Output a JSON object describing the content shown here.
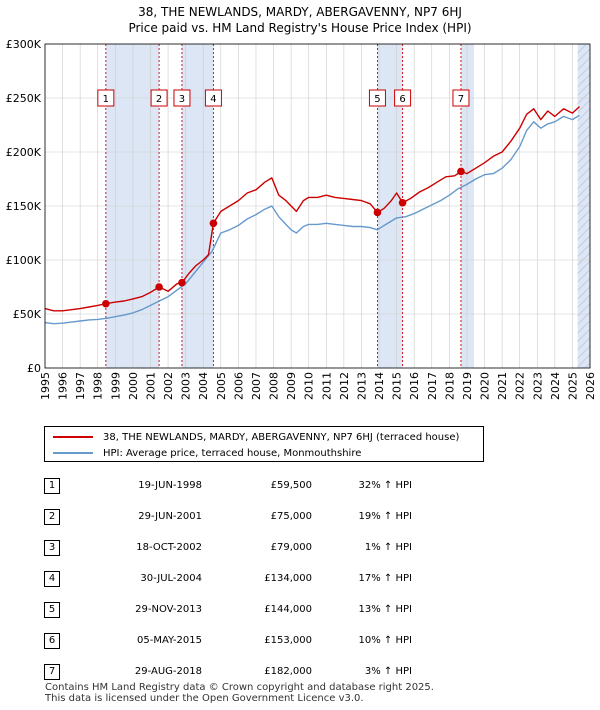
{
  "title": {
    "line1": "38, THE NEWLANDS, MARDY, ABERGAVENNY, NP7 6HJ",
    "line2": "Price paid vs. HM Land Registry's House Price Index (HPI)"
  },
  "colors": {
    "price_line": "#cc0000",
    "hpi_line": "#6699cc",
    "shade": "#dde6f5",
    "vline": "#cc0000",
    "grid": "#cccccc"
  },
  "chart_data": {
    "type": "line",
    "title": "Price paid vs. HM Land Registry's House Price Index (HPI)",
    "xlim": [
      1995,
      2026
    ],
    "ylim": [
      0,
      300000
    ],
    "x_ticks": [
      "1995",
      "1996",
      "1997",
      "1998",
      "1999",
      "2000",
      "2001",
      "2002",
      "2003",
      "2004",
      "2005",
      "2006",
      "2007",
      "2008",
      "2009",
      "2010",
      "2011",
      "2012",
      "2013",
      "2014",
      "2015",
      "2016",
      "2017",
      "2018",
      "2019",
      "2020",
      "2021",
      "2022",
      "2023",
      "2024",
      "2025",
      "2026"
    ],
    "y_ticks": [
      {
        "value": 0,
        "label": "£0"
      },
      {
        "value": 50000,
        "label": "£50K"
      },
      {
        "value": 100000,
        "label": "£100K"
      },
      {
        "value": 150000,
        "label": "£150K"
      },
      {
        "value": 200000,
        "label": "£200K"
      },
      {
        "value": 250000,
        "label": "£250K"
      },
      {
        "value": 300000,
        "label": "£300K"
      }
    ],
    "shaded_periods": [
      [
        1998.46,
        2001.49
      ],
      [
        2002.79,
        2004.58
      ],
      [
        2013.91,
        2015.34
      ],
      [
        2018.66,
        2019.4
      ],
      [
        2025.3,
        2026
      ]
    ],
    "hatched_period": [
      2025.3,
      2026
    ],
    "series": [
      {
        "name": "38, THE NEWLANDS, MARDY, ABERGAVENNY, NP7 6HJ (terraced house)",
        "x": [
          1995.0,
          1995.5,
          1996.0,
          1996.5,
          1997.0,
          1997.5,
          1998.0,
          1998.46,
          1999.0,
          1999.5,
          2000.0,
          2000.5,
          2001.0,
          2001.49,
          2002.0,
          2002.5,
          2002.79,
          2003.2,
          2003.6,
          2004.0,
          2004.3,
          2004.58,
          2005.0,
          2005.5,
          2006.0,
          2006.5,
          2007.0,
          2007.5,
          2007.9,
          2008.3,
          2008.7,
          2009.0,
          2009.3,
          2009.7,
          2010.0,
          2010.5,
          2011.0,
          2011.5,
          2012.0,
          2012.5,
          2013.0,
          2013.5,
          2013.91,
          2014.3,
          2014.7,
          2015.0,
          2015.34,
          2015.8,
          2016.3,
          2016.8,
          2017.3,
          2017.8,
          2018.3,
          2018.66,
          2019.0,
          2019.5,
          2020.0,
          2020.5,
          2021.0,
          2021.5,
          2022.0,
          2022.4,
          2022.8,
          2023.2,
          2023.6,
          2024.0,
          2024.5,
          2025.0,
          2025.4
        ],
        "values": [
          55000,
          53000,
          53000,
          54000,
          55000,
          56500,
          58000,
          59500,
          61000,
          62000,
          64000,
          66000,
          70000,
          75000,
          71000,
          78000,
          79000,
          88000,
          95000,
          100000,
          105000,
          134000,
          145000,
          150000,
          155000,
          162000,
          165000,
          172000,
          176000,
          160000,
          155000,
          150000,
          145000,
          155000,
          158000,
          158000,
          160000,
          158000,
          157000,
          156000,
          155000,
          152000,
          144000,
          148000,
          155000,
          162000,
          153000,
          157000,
          163000,
          167000,
          172000,
          177000,
          178000,
          182000,
          180000,
          185000,
          190000,
          196000,
          200000,
          210000,
          222000,
          235000,
          240000,
          230000,
          238000,
          233000,
          240000,
          236000,
          242000
        ]
      },
      {
        "name": "HPI: Average price, terraced house, Monmouthshire",
        "x": [
          1995.0,
          1995.5,
          1996.0,
          1996.5,
          1997.0,
          1997.5,
          1998.0,
          1998.5,
          1999.0,
          1999.5,
          2000.0,
          2000.5,
          2001.0,
          2001.5,
          2002.0,
          2002.5,
          2003.0,
          2003.5,
          2004.0,
          2004.5,
          2005.0,
          2005.5,
          2006.0,
          2006.5,
          2007.0,
          2007.5,
          2007.9,
          2008.3,
          2008.7,
          2009.0,
          2009.3,
          2009.7,
          2010.0,
          2010.5,
          2011.0,
          2011.5,
          2012.0,
          2012.5,
          2013.0,
          2013.5,
          2013.9,
          2014.3,
          2014.7,
          2015.0,
          2015.5,
          2016.0,
          2016.5,
          2017.0,
          2017.5,
          2018.0,
          2018.5,
          2019.0,
          2019.5,
          2020.0,
          2020.5,
          2021.0,
          2021.5,
          2022.0,
          2022.4,
          2022.8,
          2023.2,
          2023.6,
          2024.0,
          2024.5,
          2025.0,
          2025.4
        ],
        "values": [
          42000,
          41000,
          41500,
          42500,
          43500,
          44500,
          45000,
          46000,
          47500,
          49000,
          51000,
          54000,
          58000,
          62000,
          66000,
          72000,
          78000,
          88000,
          98000,
          108000,
          125000,
          128000,
          132000,
          138000,
          142000,
          147000,
          150000,
          140000,
          133000,
          128000,
          125000,
          131000,
          133000,
          133000,
          134000,
          133000,
          132000,
          131000,
          131000,
          130000,
          128000,
          132000,
          136000,
          139000,
          140000,
          143000,
          147000,
          151000,
          155000,
          160000,
          166000,
          170000,
          175000,
          179000,
          180000,
          185000,
          193000,
          205000,
          220000,
          228000,
          222000,
          226000,
          228000,
          233000,
          230000,
          234000
        ]
      }
    ],
    "sales": [
      {
        "num": "1",
        "x": 1998.46,
        "value": 59500
      },
      {
        "num": "2",
        "x": 2001.49,
        "value": 75000
      },
      {
        "num": "3",
        "x": 2002.79,
        "value": 79000
      },
      {
        "num": "4",
        "x": 2004.58,
        "value": 134000
      },
      {
        "num": "5",
        "x": 2013.91,
        "value": 144000
      },
      {
        "num": "6",
        "x": 2015.34,
        "value": 153000
      },
      {
        "num": "7",
        "x": 2018.66,
        "value": 182000
      }
    ],
    "marker_box_value": 250000
  },
  "legend": {
    "price": "38, THE NEWLANDS, MARDY, ABERGAVENNY, NP7 6HJ (terraced house)",
    "hpi": "HPI: Average price, terraced house, Monmouthshire"
  },
  "table": [
    {
      "num": "1",
      "date": "19-JUN-1998",
      "price": "£59,500",
      "hpi": "32% ↑ HPI"
    },
    {
      "num": "2",
      "date": "29-JUN-2001",
      "price": "£75,000",
      "hpi": "19% ↑ HPI"
    },
    {
      "num": "3",
      "date": "18-OCT-2002",
      "price": "£79,000",
      "hpi": "1% ↑ HPI"
    },
    {
      "num": "4",
      "date": "30-JUL-2004",
      "price": "£134,000",
      "hpi": "17% ↑ HPI"
    },
    {
      "num": "5",
      "date": "29-NOV-2013",
      "price": "£144,000",
      "hpi": "13% ↑ HPI"
    },
    {
      "num": "6",
      "date": "05-MAY-2015",
      "price": "£153,000",
      "hpi": "10% ↑ HPI"
    },
    {
      "num": "7",
      "date": "29-AUG-2018",
      "price": "£182,000",
      "hpi": "3% ↑ HPI"
    }
  ],
  "footer": {
    "line1": "Contains HM Land Registry data © Crown copyright and database right 2025.",
    "line2": "This data is licensed under the Open Government Licence v3.0."
  }
}
